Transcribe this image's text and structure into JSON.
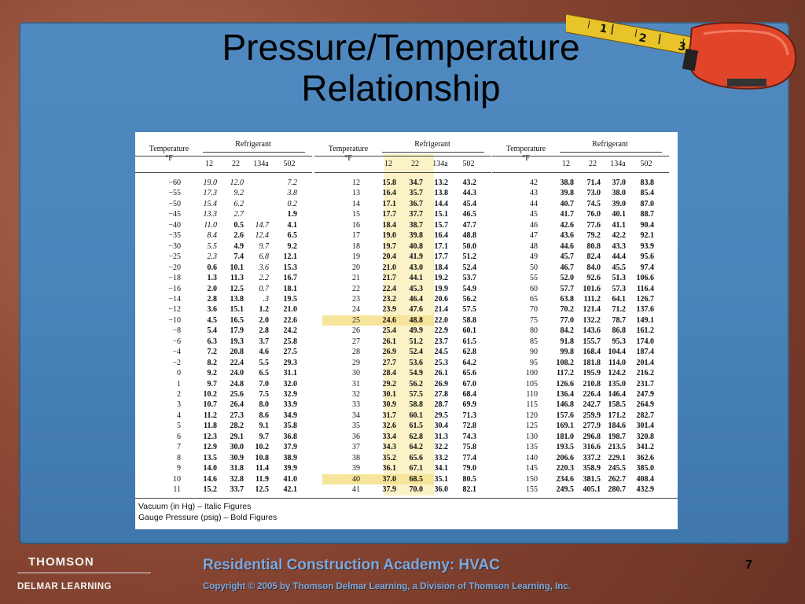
{
  "slide": {
    "title_line1": "Pressure/Temperature",
    "title_line2": "Relationship",
    "page_number": "7"
  },
  "footer": {
    "logo_top": "THOMSON",
    "logo_bottom": "DELMAR LEARNING",
    "course_title": "Residential Construction Academy: HVAC",
    "copyright": "Copyright © 2005 by Thomson Delmar Learning,  a Division of Thomson Learning, Inc."
  },
  "tape_marks": [
    "1",
    "2",
    "3"
  ],
  "table": {
    "temp_header_line1": "Temperature",
    "temp_header_line2": "°F",
    "refrigerant_header": "Refrigerant",
    "columns": [
      "12",
      "22",
      "134a",
      "502"
    ],
    "notes": [
      "Vacuum (in Hg) – Italic Figures",
      "Gauge Pressure (psig) – Bold Figures"
    ],
    "groups": [
      {
        "rows": [
          [
            "−60",
            "19.0",
            "12.0",
            "",
            "7.2"
          ],
          [
            "−55",
            "17.3",
            "9.2",
            "",
            "3.8"
          ],
          [
            "−50",
            "15.4",
            "6.2",
            "",
            "0.2"
          ],
          [
            "−45",
            "13.3",
            "2.7",
            "",
            "1.9"
          ],
          [
            "−40",
            "11.0",
            "0.5",
            "14.7",
            "4.1"
          ],
          [
            "−35",
            "8.4",
            "2.6",
            "12.4",
            "6.5"
          ],
          [
            "−30",
            "5.5",
            "4.9",
            "9.7",
            "9.2"
          ],
          [
            "−25",
            "2.3",
            "7.4",
            "6.8",
            "12.1"
          ],
          [
            "−20",
            "0.6",
            "10.1",
            "3.6",
            "15.3"
          ],
          [
            "−18",
            "1.3",
            "11.3",
            "2.2",
            "16.7"
          ],
          [
            "−16",
            "2.0",
            "12.5",
            "0.7",
            "18.1"
          ],
          [
            "−14",
            "2.8",
            "13.8",
            ".3",
            "19.5"
          ],
          [
            "−12",
            "3.6",
            "15.1",
            "1.2",
            "21.0"
          ],
          [
            "−10",
            "4.5",
            "16.5",
            "2.0",
            "22.6"
          ],
          [
            "−8",
            "5.4",
            "17.9",
            "2.8",
            "24.2"
          ],
          [
            "−6",
            "6.3",
            "19.3",
            "3.7",
            "25.8"
          ],
          [
            "−4",
            "7.2",
            "20.8",
            "4.6",
            "27.5"
          ],
          [
            "−2",
            "8.2",
            "22.4",
            "5.5",
            "29.3"
          ],
          [
            "0",
            "9.2",
            "24.0",
            "6.5",
            "31.1"
          ],
          [
            "1",
            "9.7",
            "24.8",
            "7.0",
            "32.0"
          ],
          [
            "2",
            "10.2",
            "25.6",
            "7.5",
            "32.9"
          ],
          [
            "3",
            "10.7",
            "26.4",
            "8.0",
            "33.9"
          ],
          [
            "4",
            "11.2",
            "27.3",
            "8.6",
            "34.9"
          ],
          [
            "5",
            "11.8",
            "28.2",
            "9.1",
            "35.8"
          ],
          [
            "6",
            "12.3",
            "29.1",
            "9.7",
            "36.8"
          ],
          [
            "7",
            "12.9",
            "30.0",
            "10.2",
            "37.9"
          ],
          [
            "8",
            "13.5",
            "30.9",
            "10.8",
            "38.9"
          ],
          [
            "9",
            "14.0",
            "31.8",
            "11.4",
            "39.9"
          ],
          [
            "10",
            "14.6",
            "32.8",
            "11.9",
            "41.0"
          ],
          [
            "11",
            "15.2",
            "33.7",
            "12.5",
            "42.1"
          ]
        ]
      },
      {
        "rows": [
          [
            "12",
            "15.8",
            "34.7",
            "13.2",
            "43.2"
          ],
          [
            "13",
            "16.4",
            "35.7",
            "13.8",
            "44.3"
          ],
          [
            "14",
            "17.1",
            "36.7",
            "14.4",
            "45.4"
          ],
          [
            "15",
            "17.7",
            "37.7",
            "15.1",
            "46.5"
          ],
          [
            "16",
            "18.4",
            "38.7",
            "15.7",
            "47.7"
          ],
          [
            "17",
            "19.0",
            "39.8",
            "16.4",
            "48.8"
          ],
          [
            "18",
            "19.7",
            "40.8",
            "17.1",
            "50.0"
          ],
          [
            "19",
            "20.4",
            "41.9",
            "17.7",
            "51.2"
          ],
          [
            "20",
            "21.0",
            "43.0",
            "18.4",
            "52.4"
          ],
          [
            "21",
            "21.7",
            "44.1",
            "19.2",
            "53.7"
          ],
          [
            "22",
            "22.4",
            "45.3",
            "19.9",
            "54.9"
          ],
          [
            "23",
            "23.2",
            "46.4",
            "20.6",
            "56.2"
          ],
          [
            "24",
            "23.9",
            "47.6",
            "21.4",
            "57.5"
          ],
          [
            "25",
            "24.6",
            "48.8",
            "22.0",
            "58.8"
          ],
          [
            "26",
            "25.4",
            "49.9",
            "22.9",
            "60.1"
          ],
          [
            "27",
            "26.1",
            "51.2",
            "23.7",
            "61.5"
          ],
          [
            "28",
            "26.9",
            "52.4",
            "24.5",
            "62.8"
          ],
          [
            "29",
            "27.7",
            "53.6",
            "25.3",
            "64.2"
          ],
          [
            "30",
            "28.4",
            "54.9",
            "26.1",
            "65.6"
          ],
          [
            "31",
            "29.2",
            "56.2",
            "26.9",
            "67.0"
          ],
          [
            "32",
            "30.1",
            "57.5",
            "27.8",
            "68.4"
          ],
          [
            "33",
            "30.9",
            "58.8",
            "28.7",
            "69.9"
          ],
          [
            "34",
            "31.7",
            "60.1",
            "29.5",
            "71.3"
          ],
          [
            "35",
            "32.6",
            "61.5",
            "30.4",
            "72.8"
          ],
          [
            "36",
            "33.4",
            "62.8",
            "31.3",
            "74.3"
          ],
          [
            "37",
            "34.3",
            "64.2",
            "32.2",
            "75.8"
          ],
          [
            "38",
            "35.2",
            "65.6",
            "33.2",
            "77.4"
          ],
          [
            "39",
            "36.1",
            "67.1",
            "34.1",
            "79.0"
          ],
          [
            "40",
            "37.0",
            "68.5",
            "35.1",
            "80.5"
          ],
          [
            "41",
            "37.9",
            "70.0",
            "36.0",
            "82.1"
          ]
        ]
      },
      {
        "rows": [
          [
            "42",
            "38.8",
            "71.4",
            "37.0",
            "83.8"
          ],
          [
            "43",
            "39.8",
            "73.0",
            "38.0",
            "85.4"
          ],
          [
            "44",
            "40.7",
            "74.5",
            "39.0",
            "87.0"
          ],
          [
            "45",
            "41.7",
            "76.0",
            "40.1",
            "88.7"
          ],
          [
            "46",
            "42.6",
            "77.6",
            "41.1",
            "90.4"
          ],
          [
            "47",
            "43.6",
            "79.2",
            "42.2",
            "92.1"
          ],
          [
            "48",
            "44.6",
            "80.8",
            "43.3",
            "93.9"
          ],
          [
            "49",
            "45.7",
            "82.4",
            "44.4",
            "95.6"
          ],
          [
            "50",
            "46.7",
            "84.0",
            "45.5",
            "97.4"
          ],
          [
            "55",
            "52.0",
            "92.6",
            "51.3",
            "106.6"
          ],
          [
            "60",
            "57.7",
            "101.6",
            "57.3",
            "116.4"
          ],
          [
            "65",
            "63.8",
            "111.2",
            "64.1",
            "126.7"
          ],
          [
            "70",
            "70.2",
            "121.4",
            "71.2",
            "137.6"
          ],
          [
            "75",
            "77.0",
            "132.2",
            "78.7",
            "149.1"
          ],
          [
            "80",
            "84.2",
            "143.6",
            "86.8",
            "161.2"
          ],
          [
            "85",
            "91.8",
            "155.7",
            "95.3",
            "174.0"
          ],
          [
            "90",
            "99.8",
            "168.4",
            "104.4",
            "187.4"
          ],
          [
            "95",
            "108.2",
            "181.8",
            "114.0",
            "201.4"
          ],
          [
            "100",
            "117.2",
            "195.9",
            "124.2",
            "216.2"
          ],
          [
            "105",
            "126.6",
            "210.8",
            "135.0",
            "231.7"
          ],
          [
            "110",
            "136.4",
            "226.4",
            "146.4",
            "247.9"
          ],
          [
            "115",
            "146.8",
            "242.7",
            "158.5",
            "264.9"
          ],
          [
            "120",
            "157.6",
            "259.9",
            "171.2",
            "282.7"
          ],
          [
            "125",
            "169.1",
            "277.9",
            "184.6",
            "301.4"
          ],
          [
            "130",
            "181.0",
            "296.8",
            "198.7",
            "320.8"
          ],
          [
            "135",
            "193.5",
            "316.6",
            "213.5",
            "341.2"
          ],
          [
            "140",
            "206.6",
            "337.2",
            "229.1",
            "362.6"
          ],
          [
            "145",
            "220.3",
            "358.9",
            "245.5",
            "385.0"
          ],
          [
            "150",
            "234.6",
            "381.5",
            "262.7",
            "408.4"
          ],
          [
            "155",
            "249.5",
            "405.1",
            "280.7",
            "432.9"
          ]
        ]
      }
    ],
    "vacuum_cells": [
      [
        0,
        0,
        1
      ],
      [
        0,
        0,
        2
      ],
      [
        0,
        0,
        4
      ],
      [
        0,
        1,
        1
      ],
      [
        0,
        1,
        2
      ],
      [
        0,
        1,
        4
      ],
      [
        0,
        2,
        1
      ],
      [
        0,
        2,
        2
      ],
      [
        0,
        2,
        4
      ],
      [
        0,
        3,
        1
      ],
      [
        0,
        3,
        2
      ],
      [
        0,
        4,
        1
      ],
      [
        0,
        4,
        3
      ],
      [
        0,
        5,
        1
      ],
      [
        0,
        5,
        3
      ],
      [
        0,
        6,
        1
      ],
      [
        0,
        6,
        3
      ],
      [
        0,
        7,
        1
      ],
      [
        0,
        7,
        3
      ],
      [
        0,
        8,
        3
      ],
      [
        0,
        9,
        3
      ],
      [
        0,
        10,
        3
      ],
      [
        0,
        11,
        3
      ]
    ],
    "highlight_column": {
      "group": 1,
      "columns": [
        1,
        2
      ]
    },
    "highlight_rows": [
      {
        "group": 1,
        "row": 13
      },
      {
        "group": 1,
        "row": 28
      }
    ]
  }
}
